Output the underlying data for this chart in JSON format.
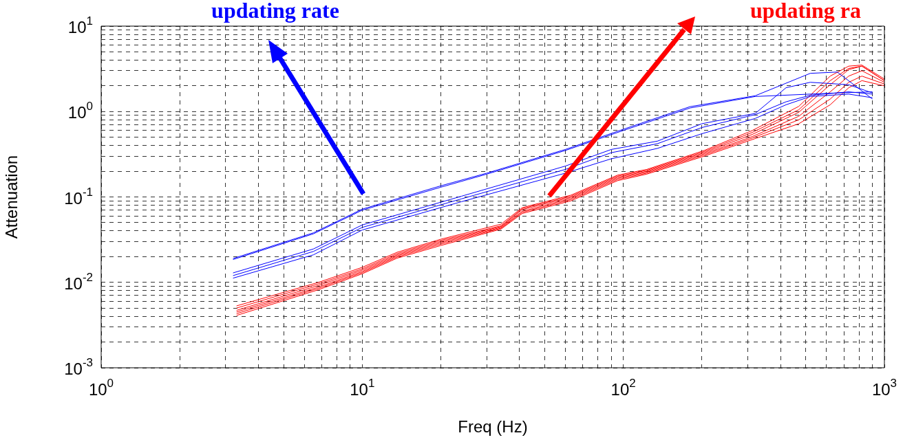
{
  "chart_data": {
    "type": "line",
    "xlabel": "Freq (Hz)",
    "ylabel": "Attenuation",
    "annotations": [
      "updating rate",
      "updating ra"
    ],
    "log": "xy",
    "grid": true,
    "legend": false,
    "marker": "none",
    "line_style": "solid",
    "xlim": [
      1,
      1000
    ],
    "ylim": [
      0.001,
      10
    ],
    "xticks": [
      {
        "value": 1,
        "label": "10$^{0}$"
      },
      {
        "value": 2,
        "label": null
      },
      {
        "value": 3,
        "label": null
      },
      {
        "value": 4,
        "label": null
      },
      {
        "value": 5,
        "label": null
      },
      {
        "value": 6,
        "label": null
      },
      {
        "value": 7,
        "label": null
      },
      {
        "value": 8,
        "label": null
      },
      {
        "value": 9,
        "label": null
      },
      {
        "value": 10,
        "label": "10$^{1}$"
      },
      {
        "value": 20,
        "label": null
      },
      {
        "value": 30,
        "label": null
      },
      {
        "value": 40,
        "label": null
      },
      {
        "value": 50,
        "label": null
      },
      {
        "value": 60,
        "label": null
      },
      {
        "value": 70,
        "label": null
      },
      {
        "value": 80,
        "label": null
      },
      {
        "value": 90,
        "label": null
      },
      {
        "value": 100,
        "label": "10$^{2}$"
      },
      {
        "value": 200,
        "label": null
      },
      {
        "value": 300,
        "label": null
      },
      {
        "value": 400,
        "label": null
      },
      {
        "value": 500,
        "label": null
      },
      {
        "value": 600,
        "label": null
      },
      {
        "value": 700,
        "label": null
      },
      {
        "value": 800,
        "label": null
      },
      {
        "value": 900,
        "label": null
      },
      {
        "value": 1000,
        "label": "10$^{3}$"
      }
    ],
    "yticks": [
      {
        "value": 0.001,
        "label": "10$^{-3}$"
      },
      {
        "value": 0.002,
        "label": null
      },
      {
        "value": 0.003,
        "label": null
      },
      {
        "value": 0.004,
        "label": null
      },
      {
        "value": 0.005,
        "label": null
      },
      {
        "value": 0.006,
        "label": null
      },
      {
        "value": 0.007,
        "label": null
      },
      {
        "value": 0.008,
        "label": null
      },
      {
        "value": 0.009,
        "label": null
      },
      {
        "value": 0.01,
        "label": "10$^{-2}$"
      },
      {
        "value": 0.02,
        "label": null
      },
      {
        "value": 0.03,
        "label": null
      },
      {
        "value": 0.04,
        "label": null
      },
      {
        "value": 0.05,
        "label": null
      },
      {
        "value": 0.06,
        "label": null
      },
      {
        "value": 0.07,
        "label": null
      },
      {
        "value": 0.08,
        "label": null
      },
      {
        "value": 0.09,
        "label": null
      },
      {
        "value": 0.1,
        "label": "10$^{-1}$"
      },
      {
        "value": 0.2,
        "label": null
      },
      {
        "value": 0.3,
        "label": null
      },
      {
        "value": 0.4,
        "label": null
      },
      {
        "value": 0.5,
        "label": null
      },
      {
        "value": 0.6,
        "label": null
      },
      {
        "value": 0.7,
        "label": null
      },
      {
        "value": 0.8,
        "label": null
      },
      {
        "value": 0.9,
        "label": null
      },
      {
        "value": 1,
        "label": "10$^{0}$"
      },
      {
        "value": 2,
        "label": null
      },
      {
        "value": 3,
        "label": null
      },
      {
        "value": 4,
        "label": null
      },
      {
        "value": 5,
        "label": null
      },
      {
        "value": 6,
        "label": null
      },
      {
        "value": 7,
        "label": null
      },
      {
        "value": 8,
        "label": null
      },
      {
        "value": 9,
        "label": null
      },
      {
        "value": 10,
        "label": "10$^{1}$"
      }
    ],
    "series": [
      {
        "color": "#0000ff",
        "x": [
          3.2,
          6.5,
          10,
          20,
          30,
          60,
          100,
          180,
          320,
          520,
          660,
          900
        ],
        "values": [
          0.019,
          0.038,
          0.072,
          0.135,
          0.19,
          0.36,
          0.62,
          1.14,
          1.53,
          2.8,
          2.9,
          1.4
        ]
      },
      {
        "color": "#0000ff",
        "x": [
          3.2,
          6.5,
          10,
          20,
          30,
          60,
          100,
          180,
          320,
          520,
          660,
          900
        ],
        "values": [
          0.0185,
          0.037,
          0.07,
          0.13,
          0.185,
          0.35,
          0.6,
          1.1,
          1.5,
          1.6,
          1.65,
          1.7
        ]
      },
      {
        "color": "#0000ff",
        "x": [
          3.2,
          6.5,
          10,
          24,
          60,
          90,
          135,
          200,
          320,
          420,
          520,
          730,
          900
        ],
        "values": [
          0.0129,
          0.0246,
          0.047,
          0.102,
          0.23,
          0.36,
          0.45,
          0.72,
          0.95,
          1.9,
          2.2,
          2.06,
          1.65
        ]
      },
      {
        "color": "#0000ff",
        "x": [
          3.2,
          6.5,
          10,
          24,
          60,
          90,
          135,
          200,
          320,
          420,
          520,
          730,
          900
        ],
        "values": [
          0.012,
          0.023,
          0.044,
          0.095,
          0.21,
          0.33,
          0.42,
          0.65,
          0.92,
          1.3,
          1.55,
          1.7,
          1.6
        ]
      },
      {
        "color": "#0000ff",
        "x": [
          3.2,
          6.5,
          10,
          24,
          60,
          90,
          135,
          200,
          320,
          420,
          520,
          730,
          900
        ],
        "values": [
          0.0112,
          0.021,
          0.041,
          0.088,
          0.19,
          0.28,
          0.37,
          0.55,
          0.83,
          1.2,
          1.5,
          1.6,
          1.45
        ]
      },
      {
        "color": "#ff0000",
        "x": [
          3.3,
          6.8,
          10,
          13.6,
          20,
          34,
          41,
          63,
          95,
          123,
          204,
          312,
          470,
          620,
          730,
          820,
          1000
        ],
        "values": [
          0.0053,
          0.01,
          0.015,
          0.0225,
          0.032,
          0.048,
          0.075,
          0.105,
          0.18,
          0.21,
          0.35,
          0.6,
          1.15,
          2.6,
          3.4,
          3.5,
          2.4
        ]
      },
      {
        "color": "#ff0000",
        "x": [
          3.3,
          6.8,
          10,
          13.6,
          20,
          34,
          41,
          63,
          95,
          123,
          204,
          312,
          470,
          620,
          730,
          820,
          1000
        ],
        "values": [
          0.005,
          0.0096,
          0.0144,
          0.0217,
          0.031,
          0.046,
          0.073,
          0.102,
          0.175,
          0.205,
          0.34,
          0.57,
          1.05,
          2.3,
          3.2,
          3.4,
          2.3
        ]
      },
      {
        "color": "#ff0000",
        "x": [
          3.3,
          6.8,
          10,
          13.6,
          20,
          34,
          41,
          63,
          95,
          123,
          204,
          312,
          470,
          620,
          730,
          820,
          1000
        ],
        "values": [
          0.0047,
          0.0092,
          0.0139,
          0.021,
          0.03,
          0.045,
          0.071,
          0.099,
          0.17,
          0.2,
          0.33,
          0.54,
          0.98,
          2.06,
          3.1,
          3.4,
          2.3
        ]
      },
      {
        "color": "#ff0000",
        "x": [
          3.3,
          6.8,
          10,
          13.6,
          20,
          34,
          41,
          63,
          95,
          123,
          204,
          312,
          470,
          620,
          730,
          820,
          1000
        ],
        "values": [
          0.0045,
          0.0088,
          0.0134,
          0.0204,
          0.029,
          0.044,
          0.068,
          0.096,
          0.165,
          0.195,
          0.32,
          0.51,
          0.88,
          1.7,
          2.6,
          3.0,
          2.2
        ]
      },
      {
        "color": "#ff0000",
        "x": [
          3.3,
          6.8,
          10,
          13.6,
          20,
          34,
          41,
          63,
          95,
          123,
          204,
          312,
          470,
          620,
          730,
          820,
          1000
        ],
        "values": [
          0.0043,
          0.0085,
          0.013,
          0.0198,
          0.028,
          0.043,
          0.066,
          0.093,
          0.16,
          0.19,
          0.31,
          0.49,
          0.8,
          1.4,
          2.2,
          2.6,
          2.1
        ]
      },
      {
        "color": "#ff0000",
        "x": [
          3.3,
          6.8,
          10,
          13.6,
          20,
          34,
          41,
          63,
          95,
          123,
          204,
          312,
          470,
          620,
          730,
          820,
          1000
        ],
        "values": [
          0.0041,
          0.0082,
          0.0126,
          0.0192,
          0.027,
          0.042,
          0.064,
          0.09,
          0.155,
          0.185,
          0.3,
          0.47,
          0.72,
          1.2,
          1.9,
          2.3,
          2.0
        ]
      }
    ]
  }
}
